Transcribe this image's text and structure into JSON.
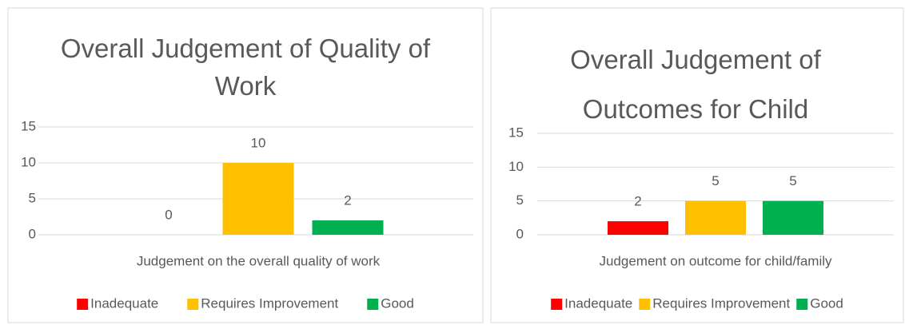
{
  "chart_data": [
    {
      "type": "bar",
      "title": "Overall Judgement of Quality of Work",
      "categories": [
        "Judgement on the overall quality of work"
      ],
      "series": [
        {
          "name": "Inadequate",
          "color": "#ff0000",
          "values": [
            0
          ]
        },
        {
          "name": "Requires Improvement",
          "color": "#ffc000",
          "values": [
            10
          ]
        },
        {
          "name": "Good",
          "color": "#00b050",
          "values": [
            2
          ]
        }
      ],
      "ylim": [
        0,
        15
      ],
      "yticks": [
        0,
        5,
        10,
        15
      ],
      "grid": true,
      "legend": "bottom"
    },
    {
      "type": "bar",
      "title": "Overall Judgement of Outcomes for Child",
      "categories": [
        "Judgement on outcome for child/family"
      ],
      "series": [
        {
          "name": "Inadequate",
          "color": "#ff0000",
          "values": [
            2
          ]
        },
        {
          "name": "Requires Improvement",
          "color": "#ffc000",
          "values": [
            5
          ]
        },
        {
          "name": "Good",
          "color": "#00b050",
          "values": [
            5
          ]
        }
      ],
      "ylim": [
        0,
        15
      ],
      "yticks": [
        0,
        5,
        10,
        15
      ],
      "grid": true,
      "legend": "bottom"
    }
  ]
}
